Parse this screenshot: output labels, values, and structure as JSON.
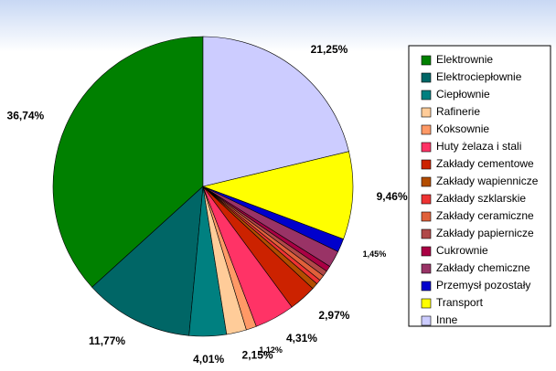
{
  "chart_data": {
    "type": "pie",
    "categories": [
      "Elektrownie",
      "Elektrociepłownie",
      "Ciepłownie",
      "Rafinerie",
      "Koksownie",
      "Huty żelaza i stali",
      "Zakłady cementowe",
      "Zakłady wapiennicze",
      "Zakłady szklarskie",
      "Zakłady ceramiczne",
      "Zakłady papiernicze",
      "Cukrownie",
      "Zakłady chemiczne",
      "Przemysł pozostały",
      "Transport",
      "Inne"
    ],
    "values": [
      36.74,
      11.77,
      4.01,
      2.15,
      1.12,
      4.31,
      2.97,
      0.67,
      0.5,
      0.6,
      0.6,
      0.6,
      1.8,
      1.45,
      9.46,
      21.25
    ],
    "value_labels": [
      "36,74%",
      "11,77%",
      "4,01%",
      "2,15%",
      "1,12%",
      "4,31%",
      "2,97%",
      null,
      null,
      null,
      null,
      null,
      null,
      "1,45%",
      "9,46%",
      "21,25%"
    ],
    "colors": [
      "#008000",
      "#006666",
      "#008080",
      "#ffcc99",
      "#ff9966",
      "#ff3366",
      "#cc2200",
      "#b34d00",
      "#ee3333",
      "#e0603a",
      "#b04848",
      "#aa0044",
      "#993366",
      "#0000cc",
      "#ffff00",
      "#ccccff"
    ],
    "legend": "right"
  }
}
